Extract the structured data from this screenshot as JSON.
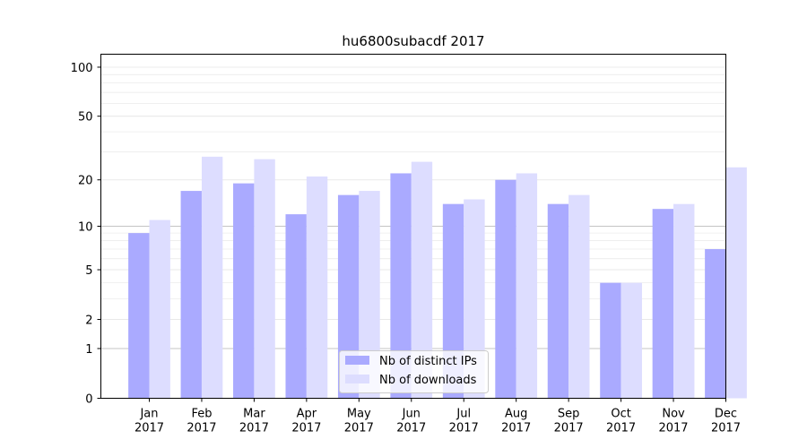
{
  "chart_data": {
    "type": "bar",
    "title": "hu6800subacdf 2017",
    "xlabel": "",
    "ylabel": "",
    "y_scale": "symlog",
    "ylim": [
      0,
      120
    ],
    "y_ticks": [
      0,
      1,
      2,
      5,
      10,
      20,
      50,
      100
    ],
    "grid": "horizontal",
    "legend_position": "lower-center",
    "categories": [
      [
        "Jan",
        "2017"
      ],
      [
        "Feb",
        "2017"
      ],
      [
        "Mar",
        "2017"
      ],
      [
        "Apr",
        "2017"
      ],
      [
        "May",
        "2017"
      ],
      [
        "Jun",
        "2017"
      ],
      [
        "Jul",
        "2017"
      ],
      [
        "Aug",
        "2017"
      ],
      [
        "Sep",
        "2017"
      ],
      [
        "Oct",
        "2017"
      ],
      [
        "Nov",
        "2017"
      ],
      [
        "Dec",
        "2017"
      ]
    ],
    "series": [
      {
        "name": "Nb of distinct IPs",
        "color": "#aaaaff",
        "values": [
          9,
          17,
          19,
          12,
          16,
          22,
          14,
          20,
          14,
          4,
          13,
          7
        ]
      },
      {
        "name": "Nb of downloads",
        "color": "#ddddff",
        "values": [
          11,
          28,
          27,
          21,
          17,
          26,
          15,
          22,
          16,
          4,
          14,
          24
        ]
      }
    ]
  }
}
